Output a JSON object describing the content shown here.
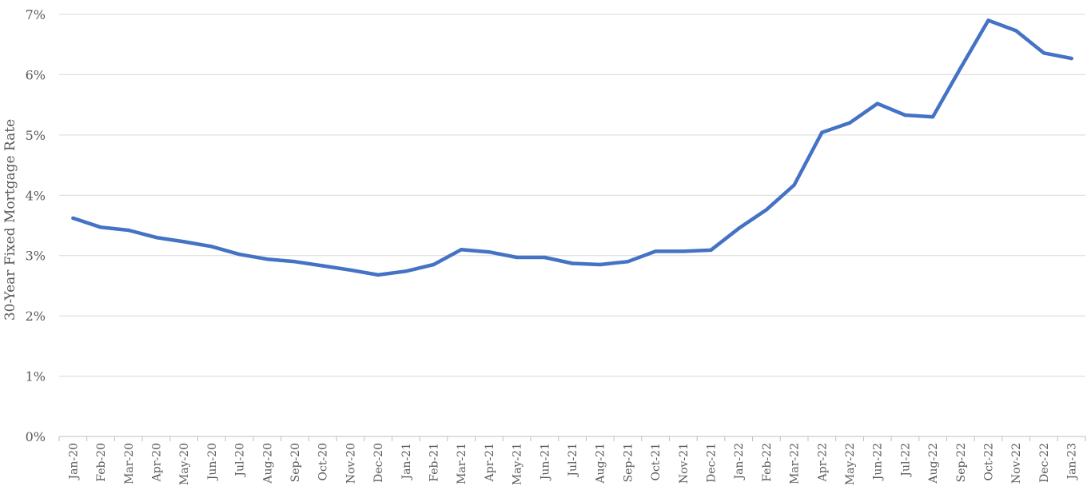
{
  "chart_data": {
    "type": "line",
    "title": "",
    "xlabel": "",
    "ylabel": "30-Year Fixed Mortgage Rate",
    "ylim": [
      0,
      7
    ],
    "yticks": [
      "0%",
      "1%",
      "2%",
      "3%",
      "4%",
      "5%",
      "6%",
      "7%"
    ],
    "grid": true,
    "line_color": "#4472C4",
    "grid_color": "#D9D9D9",
    "axis_color": "#BFBFBF",
    "text_color": "#595959",
    "categories": [
      "Jan-20",
      "Feb-20",
      "Mar-20",
      "Apr-20",
      "May-20",
      "Jun-20",
      "Jul-20",
      "Aug-20",
      "Sep-20",
      "Oct-20",
      "Nov-20",
      "Dec-20",
      "Jan-21",
      "Feb-21",
      "Mar-21",
      "Apr-21",
      "May-21",
      "Jun-21",
      "Jul-21",
      "Aug-21",
      "Sep-21",
      "Oct-21",
      "Nov-21",
      "Dec-21",
      "Jan-22",
      "Feb-22",
      "Mar-22",
      "Apr-22",
      "May-22",
      "Jun-22",
      "Jul-22",
      "Aug-22",
      "Sep-22",
      "Oct-22",
      "Nov-22",
      "Dec-22",
      "Jan-23"
    ],
    "series": [
      {
        "values": [
          3.62,
          3.47,
          3.42,
          3.3,
          3.23,
          3.15,
          3.02,
          2.94,
          2.9,
          2.83,
          2.76,
          2.68,
          2.74,
          2.85,
          3.1,
          3.06,
          2.97,
          2.97,
          2.87,
          2.85,
          2.9,
          3.07,
          3.07,
          3.09,
          3.45,
          3.76,
          4.17,
          5.04,
          5.2,
          5.52,
          5.33,
          5.3,
          6.11,
          6.9,
          6.73,
          6.36,
          6.27
        ]
      }
    ]
  }
}
